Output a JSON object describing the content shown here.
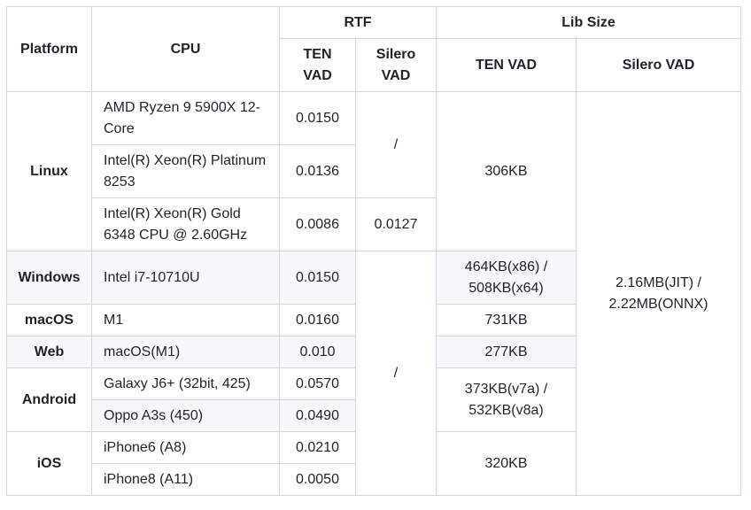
{
  "headers": {
    "platform": "Platform",
    "cpu": "CPU",
    "rtf": "RTF",
    "lib_size": "Lib Size",
    "rtf_ten": "TEN VAD",
    "rtf_silero": "Silero VAD",
    "lib_ten": "TEN VAD",
    "lib_silero": "Silero VAD"
  },
  "platforms": {
    "linux": "Linux",
    "windows": "Windows",
    "macos": "macOS",
    "web": "Web",
    "android": "Android",
    "ios": "iOS"
  },
  "rows": [
    {
      "cpu": "AMD Ryzen 9 5900X 12-Core",
      "ten_rtf": "0.0150"
    },
    {
      "cpu": "Intel(R) Xeon(R) Platinum 8253",
      "ten_rtf": "0.0136"
    },
    {
      "cpu": "Intel(R) Xeon(R) Gold 6348 CPU @ 2.60GHz",
      "ten_rtf": "0.0086"
    },
    {
      "cpu": "Intel i7-10710U",
      "ten_rtf": "0.0150"
    },
    {
      "cpu": "M1",
      "ten_rtf": "0.0160"
    },
    {
      "cpu": "macOS(M1)",
      "ten_rtf": "0.010"
    },
    {
      "cpu": "Galaxy J6+ (32bit, 425)",
      "ten_rtf": "0.0570"
    },
    {
      "cpu": "Oppo A3s (450)",
      "ten_rtf": "0.0490"
    },
    {
      "cpu": "iPhone6 (A8)",
      "ten_rtf": "0.0210"
    },
    {
      "cpu": "iPhone8 (A11)",
      "ten_rtf": "0.0050"
    }
  ],
  "silero_rtf": {
    "linux_top": "/",
    "linux_gold": "0.0127",
    "others": "/"
  },
  "ten_lib": {
    "linux": "306KB",
    "windows": "464KB(x86) / 508KB(x64)",
    "macos": "731KB",
    "web": "277KB",
    "android": "373KB(v7a) / 532KB(v8a)",
    "ios": "320KB"
  },
  "silero_lib": "2.16MB(JIT) / 2.22MB(ONNX)"
}
